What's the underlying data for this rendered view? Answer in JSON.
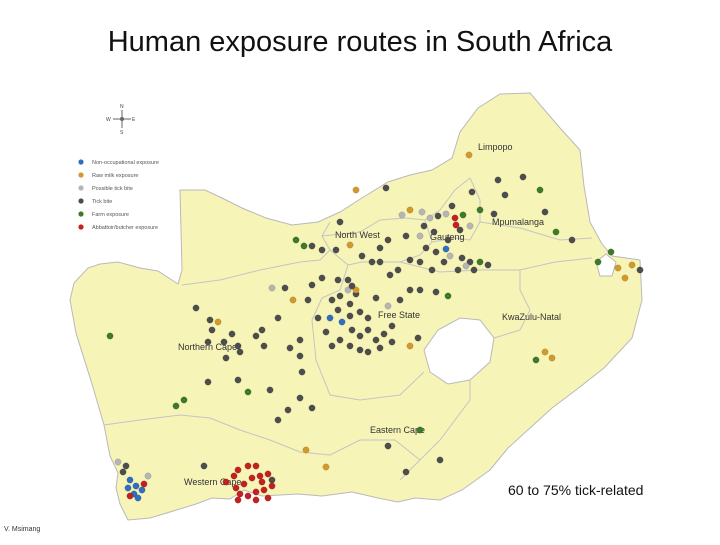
{
  "title": "Human exposure routes in South Africa",
  "note": "60 to 75% tick-related",
  "credit": "V. Msimang",
  "compass": {
    "n": "N",
    "s": "S",
    "e": "E",
    "w": "W"
  },
  "legend": [
    {
      "label": "Non-occupational exposure",
      "color": "#2f6fbf"
    },
    {
      "label": "Raw milk exposure",
      "color": "#d19a2a"
    },
    {
      "label": "Possible tick bite",
      "color": "#b5b5b5"
    },
    {
      "label": "Tick bite",
      "color": "#4d4d4d"
    },
    {
      "label": "Farm exposure",
      "color": "#3d7a2a"
    },
    {
      "label": "Abbattoir/butcher exposure",
      "color": "#c42020"
    }
  ],
  "provinces": {
    "limpopo": "Limpopo",
    "mpumalanga": "Mpumalanga",
    "gauteng": "Gauteng",
    "north_west": "North West",
    "free_state": "Free State",
    "kwazulu_natal": "KwaZulu-Natal",
    "northern_cape": "Northern Cape",
    "eastern_cape": "Eastern Cape",
    "western_cape": "Western Cape"
  },
  "colors": {
    "land": "#f7f4b8",
    "border": "#c9c9c9",
    "lesotho": "#ffffff"
  }
}
